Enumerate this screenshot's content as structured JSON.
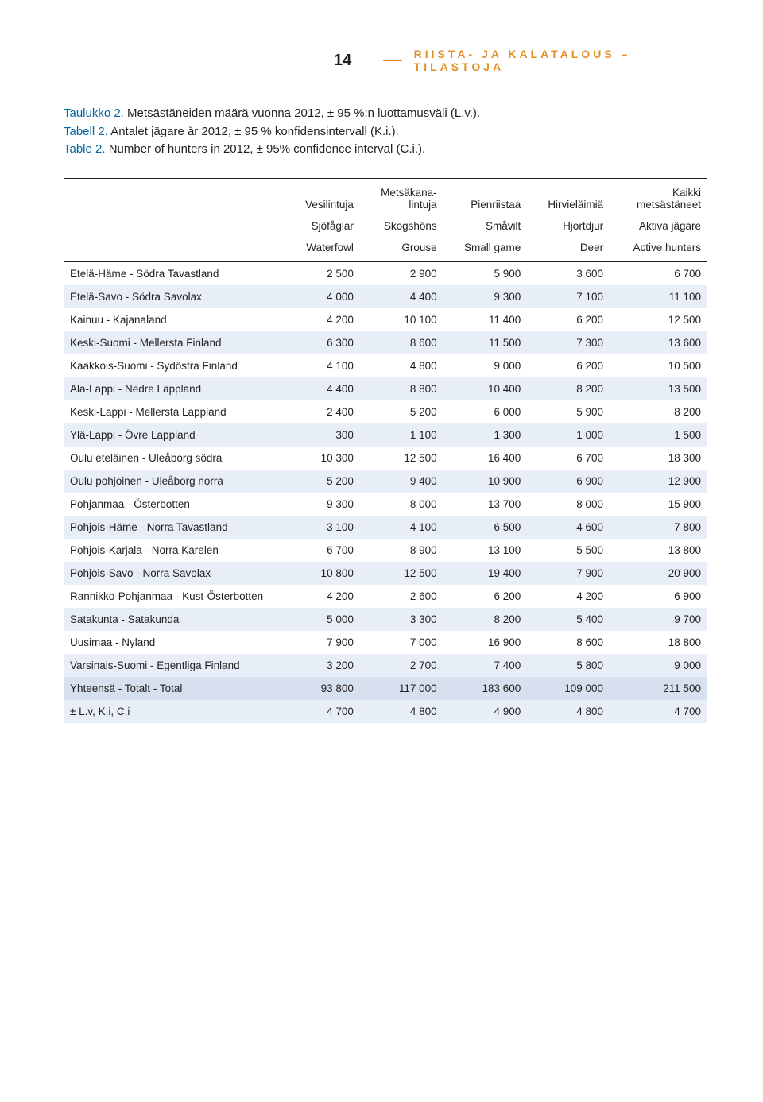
{
  "page_number": "14",
  "running_head": "RIISTA- JA KALATALOUS – TILASTOJA",
  "caption": {
    "line1_lead": "Taulukko 2.",
    "line1_rest": " Metsästäneiden määrä vuonna 2012, ± 95 %:n luottamusväli (L.v.).",
    "line2_lead": "Tabell 2.",
    "line2_rest": " Antalet jägare år 2012, ± 95 % konfidensintervall (K.i.).",
    "line3_lead": "Table 2.",
    "line3_rest": " Number of hunters in 2012, ± 95% confidence interval (C.i.)."
  },
  "colors": {
    "accent_orange": "#e28f2a",
    "lead_blue": "#0066a1",
    "band_light": "#e8eef7",
    "band_total": "#d6e0ee",
    "rule": "#231f20",
    "bg": "#ffffff"
  },
  "table": {
    "header_row1": [
      "",
      "Vesilintuja",
      "Metsäkana-\nlintuja",
      "Pienriistaa",
      "Hirvieläimiä",
      "Kaikki\nmetsästäneet"
    ],
    "header_row2": [
      "",
      "Sjöfåglar",
      "Skogshöns",
      "Småvilt",
      "Hjortdjur",
      "Aktiva jägare"
    ],
    "header_row3": [
      "",
      "Waterfowl",
      "Grouse",
      "Small game",
      "Deer",
      "Active hunters"
    ],
    "rows": [
      {
        "band": false,
        "cells": [
          "Etelä-Häme - Södra Tavastland",
          "2 500",
          "2 900",
          "5 900",
          "3 600",
          "6 700"
        ]
      },
      {
        "band": true,
        "cells": [
          "Etelä-Savo - Södra Savolax",
          "4 000",
          "4 400",
          "9 300",
          "7 100",
          "11 100"
        ]
      },
      {
        "band": false,
        "cells": [
          "Kainuu - Kajanaland",
          "4 200",
          "10 100",
          "11 400",
          "6 200",
          "12 500"
        ]
      },
      {
        "band": true,
        "cells": [
          "Keski-Suomi - Mellersta Finland",
          "6 300",
          "8 600",
          "11 500",
          "7 300",
          "13 600"
        ]
      },
      {
        "band": false,
        "cells": [
          "Kaakkois-Suomi - Sydöstra Finland",
          "4 100",
          "4 800",
          "9 000",
          "6 200",
          "10 500"
        ]
      },
      {
        "band": true,
        "cells": [
          "Ala-Lappi - Nedre Lappland",
          "4 400",
          "8 800",
          "10 400",
          "8 200",
          "13 500"
        ]
      },
      {
        "band": false,
        "cells": [
          "Keski-Lappi - Mellersta Lappland",
          "2 400",
          "5 200",
          "6 000",
          "5 900",
          "8 200"
        ]
      },
      {
        "band": true,
        "cells": [
          "Ylä-Lappi - Övre Lappland",
          "300",
          "1 100",
          "1 300",
          "1 000",
          "1 500"
        ]
      },
      {
        "band": false,
        "cells": [
          "Oulu eteläinen - Uleåborg södra",
          "10 300",
          "12 500",
          "16 400",
          "6 700",
          "18 300"
        ]
      },
      {
        "band": true,
        "cells": [
          "Oulu pohjoinen - Uleåborg norra",
          "5 200",
          "9 400",
          "10 900",
          "6 900",
          "12 900"
        ]
      },
      {
        "band": false,
        "cells": [
          "Pohjanmaa - Österbotten",
          "9 300",
          "8 000",
          "13 700",
          "8 000",
          "15 900"
        ]
      },
      {
        "band": true,
        "cells": [
          "Pohjois-Häme - Norra Tavastland",
          "3 100",
          "4 100",
          "6 500",
          "4 600",
          "7 800"
        ]
      },
      {
        "band": false,
        "cells": [
          "Pohjois-Karjala - Norra Karelen",
          "6 700",
          "8 900",
          "13 100",
          "5 500",
          "13 800"
        ]
      },
      {
        "band": true,
        "cells": [
          "Pohjois-Savo - Norra Savolax",
          "10 800",
          "12 500",
          "19 400",
          "7 900",
          "20 900"
        ]
      },
      {
        "band": false,
        "cells": [
          "Rannikko-Pohjanmaa - Kust-Österbotten",
          "4 200",
          "2 600",
          "6 200",
          "4 200",
          "6 900"
        ]
      },
      {
        "band": true,
        "cells": [
          "Satakunta - Satakunda",
          "5 000",
          "3 300",
          "8 200",
          "5 400",
          "9 700"
        ]
      },
      {
        "band": false,
        "cells": [
          "Uusimaa - Nyland",
          "7 900",
          "7 000",
          "16 900",
          "8 600",
          "18 800"
        ]
      },
      {
        "band": true,
        "cells": [
          "Varsinais-Suomi - Egentliga Finland",
          "3 200",
          "2 700",
          "7 400",
          "5 800",
          "9 000"
        ]
      },
      {
        "band": false,
        "total": true,
        "cells": [
          "Yhteensä - Totalt - Total",
          "93 800",
          "117 000",
          "183 600",
          "109 000",
          "211 500"
        ]
      },
      {
        "band": true,
        "cells": [
          "±  L.v, K.i, C.i",
          "4 700",
          "4 800",
          "4 900",
          "4 800",
          "4 700"
        ]
      }
    ]
  }
}
